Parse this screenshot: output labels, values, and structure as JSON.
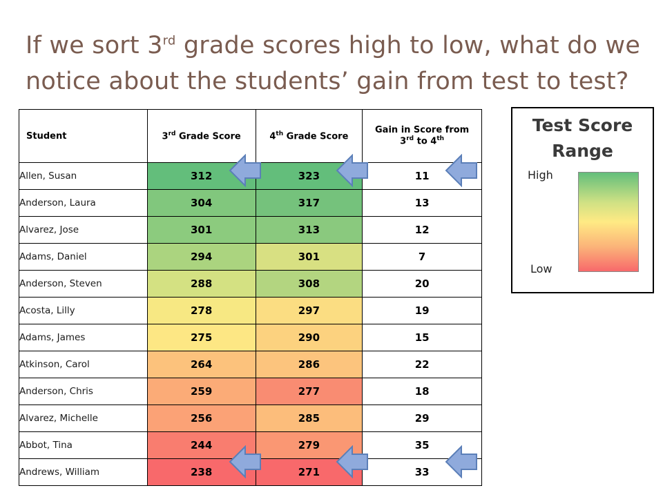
{
  "title": {
    "part1": "If we sort 3",
    "sup": "rd",
    "part2": " grade scores high to low, what do we notice about the students’ gain from test to test?"
  },
  "table": {
    "headers": {
      "student": "Student",
      "g3_num": "3",
      "g3_sup": "rd",
      "g3_rest": " Grade Score",
      "g4_num": "4",
      "g4_sup": "th",
      "g4_rest": " Grade Score",
      "gain_line1": "Gain in Score from",
      "gain_num1": "3",
      "gain_sup1": "rd",
      "gain_mid": " to 4",
      "gain_sup2": "th"
    },
    "rows": [
      {
        "name": "Allen, Susan",
        "g3": "312",
        "g4": "323",
        "gain": "11",
        "c3": "#63be7b",
        "c4": "#63be7b"
      },
      {
        "name": "Anderson, Laura",
        "g3": "304",
        "g4": "317",
        "gain": "13",
        "c3": "#81c77d",
        "c4": "#75c27c"
      },
      {
        "name": "Alvarez, Jose",
        "g3": "301",
        "g4": "313",
        "gain": "12",
        "c3": "#8ccb7e",
        "c4": "#8ac97e"
      },
      {
        "name": "Adams, Daniel",
        "g3": "294",
        "g4": "301",
        "gain": "7",
        "c3": "#abd47f",
        "c4": "#d8e082"
      },
      {
        "name": "Anderson, Steven",
        "g3": "288",
        "g4": "308",
        "gain": "20",
        "c3": "#d4e182",
        "c4": "#b3d580"
      },
      {
        "name": "Acosta, Lilly",
        "g3": "278",
        "g4": "297",
        "gain": "19",
        "c3": "#f7e883",
        "c4": "#fbdd82"
      },
      {
        "name": "Adams, James",
        "g3": "275",
        "g4": "290",
        "gain": "15",
        "c3": "#fde784",
        "c4": "#fcd27f"
      },
      {
        "name": "Atkinson, Carol",
        "g3": "264",
        "g4": "286",
        "gain": "22",
        "c3": "#fcc27c",
        "c4": "#fcc47d"
      },
      {
        "name": "Anderson, Chris",
        "g3": "259",
        "g4": "277",
        "gain": "18",
        "c3": "#fbab77",
        "c4": "#f98c72"
      },
      {
        "name": "Alvarez, Michelle",
        "g3": "256",
        "g4": "285",
        "gain": "29",
        "c3": "#fba276",
        "c4": "#fcbd7b"
      },
      {
        "name": "Abbot, Tina",
        "g3": "244",
        "g4": "279",
        "gain": "35",
        "c3": "#f97d6f",
        "c4": "#fa9773"
      },
      {
        "name": "Andrews, William",
        "g3": "238",
        "g4": "271",
        "gain": "33",
        "c3": "#f8696b",
        "c4": "#f8696b"
      }
    ]
  },
  "legend": {
    "title": "Test Score Range",
    "high": "High",
    "low": "Low",
    "gradient_colors": [
      "#63be7b",
      "#ffea84",
      "#f8696b"
    ]
  },
  "arrows": {
    "icon": "left-arrow-icon",
    "fill": "#8faadc",
    "stroke": "#5b7fb8"
  }
}
